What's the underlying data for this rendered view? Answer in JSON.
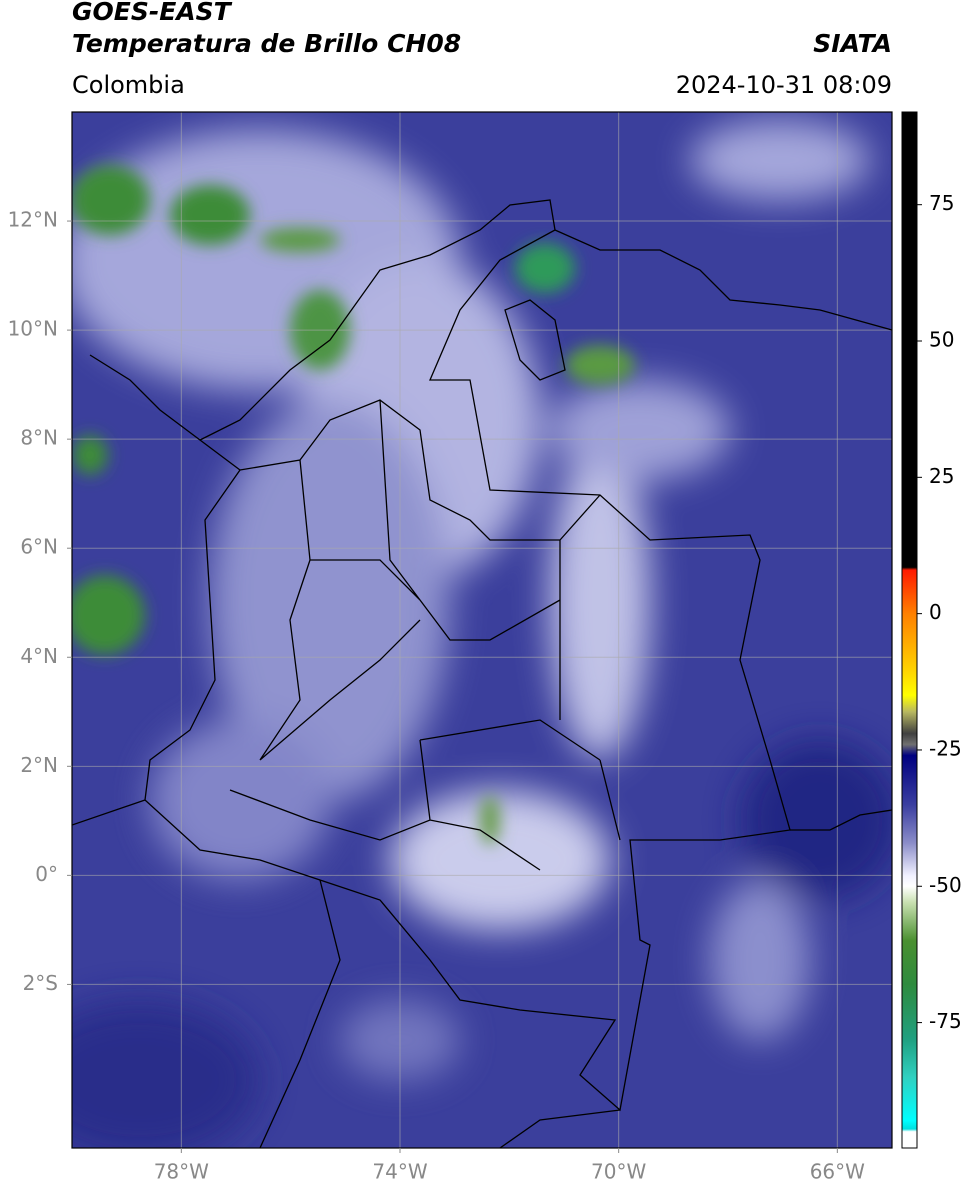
{
  "header": {
    "title": "GOES-EAST",
    "subtitle": "Temperatura de Brillo CH08",
    "source": "SIATA",
    "region": "Colombia",
    "datetime": "2024-10-31 08:09"
  },
  "map": {
    "xlim": [
      -80,
      -65
    ],
    "ylim": [
      -5,
      14
    ],
    "xticks": [
      {
        "value": -78,
        "label": "78°W"
      },
      {
        "value": -74,
        "label": "74°W"
      },
      {
        "value": -70,
        "label": "70°W"
      },
      {
        "value": -66,
        "label": "66°W"
      }
    ],
    "yticks": [
      {
        "value": 12,
        "label": "12°N"
      },
      {
        "value": 10,
        "label": "10°N"
      },
      {
        "value": 8,
        "label": "8°N"
      },
      {
        "value": 6,
        "label": "6°N"
      },
      {
        "value": 4,
        "label": "4°N"
      },
      {
        "value": 2,
        "label": "2°N"
      },
      {
        "value": 0,
        "label": "0°"
      },
      {
        "value": -2,
        "label": "2°S"
      }
    ],
    "grid": true
  },
  "colorbar": {
    "lim": [
      -98,
      92
    ],
    "ticks": [
      75,
      50,
      25,
      0,
      -25,
      -50,
      -75
    ],
    "stops": [
      {
        "value": 92,
        "color": "#000000"
      },
      {
        "value": 8.5,
        "color": "#000000"
      },
      {
        "value": 8,
        "color": "#ff1a00"
      },
      {
        "value": 0,
        "color": "#ff8000"
      },
      {
        "value": -10,
        "color": "#ffd000"
      },
      {
        "value": -15,
        "color": "#ffff00"
      },
      {
        "value": -18,
        "color": "#b8b860"
      },
      {
        "value": -22,
        "color": "#404040"
      },
      {
        "value": -24,
        "color": "#707070"
      },
      {
        "value": -26,
        "color": "#000080"
      },
      {
        "value": -35,
        "color": "#3a3ea0"
      },
      {
        "value": -42,
        "color": "#8a8cc8"
      },
      {
        "value": -48,
        "color": "#f0f0ff"
      },
      {
        "value": -50,
        "color": "#ffffff"
      },
      {
        "value": -53,
        "color": "#c8e0b0"
      },
      {
        "value": -60,
        "color": "#4a9030"
      },
      {
        "value": -68,
        "color": "#2e8b3e"
      },
      {
        "value": -78,
        "color": "#20a080"
      },
      {
        "value": -85,
        "color": "#30d0c0"
      },
      {
        "value": -93,
        "color": "#00ffff"
      },
      {
        "value": -94.5,
        "color": "#00e0e0"
      },
      {
        "value": -95,
        "color": "#ffffff"
      },
      {
        "value": -98,
        "color": "#ffffff"
      }
    ]
  }
}
